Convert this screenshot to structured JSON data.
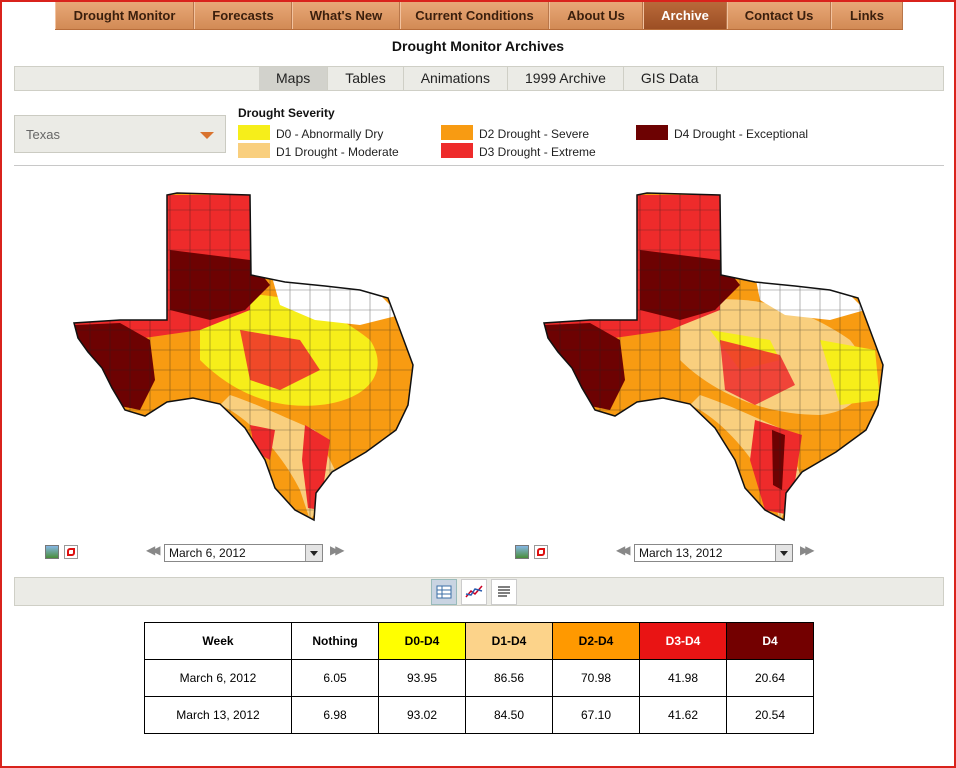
{
  "nav": {
    "items": [
      {
        "label": "Drought Monitor"
      },
      {
        "label": "Forecasts"
      },
      {
        "label": "What's New"
      },
      {
        "label": "Current Conditions"
      },
      {
        "label": "About Us"
      },
      {
        "label": "Archive"
      },
      {
        "label": "Contact Us"
      },
      {
        "label": "Links"
      }
    ],
    "active": "Archive"
  },
  "page_title": "Drought Monitor Archives",
  "subtabs": {
    "items": [
      {
        "label": "Maps"
      },
      {
        "label": "Tables"
      },
      {
        "label": "Animations"
      },
      {
        "label": "1999 Archive"
      },
      {
        "label": "GIS Data"
      }
    ],
    "active": "Maps"
  },
  "state_select": {
    "value": "Texas"
  },
  "legend": {
    "title": "Drought Severity",
    "items": [
      {
        "label": "D0 - Abnormally Dry",
        "color": "#f6ee1a"
      },
      {
        "label": "D1 Drought - Moderate",
        "color": "#f9cf7e"
      },
      {
        "label": "D2 Drought - Severe",
        "color": "#f89b12"
      },
      {
        "label": "D3 Drought - Extreme",
        "color": "#ee2b2b"
      },
      {
        "label": "D4 Drought - Exceptional",
        "color": "#6d0202"
      }
    ]
  },
  "maps": [
    {
      "date": "March 6, 2012"
    },
    {
      "date": "March 13, 2012"
    }
  ],
  "icons": {
    "image": "image-icon",
    "pdf": "pdf-icon",
    "prev": "double-left-arrow-icon",
    "next": "double-right-arrow-icon",
    "table_view": "table-view-icon",
    "chart_view": "chart-view-icon",
    "text_view": "text-view-icon"
  },
  "table": {
    "headers": [
      "Week",
      "Nothing",
      "D0-D4",
      "D1-D4",
      "D2-D4",
      "D3-D4",
      "D4"
    ],
    "header_colors": [
      "#ffffff",
      "#ffffff",
      "#ffff00",
      "#fcd38a",
      "#ff9900",
      "#e91414",
      "#730000"
    ],
    "rows": [
      [
        "March 6, 2012",
        "6.05",
        "93.95",
        "86.56",
        "70.98",
        "41.98",
        "20.64"
      ],
      [
        "March 13, 2012",
        "6.98",
        "93.02",
        "84.50",
        "67.10",
        "41.62",
        "20.54"
      ]
    ]
  }
}
